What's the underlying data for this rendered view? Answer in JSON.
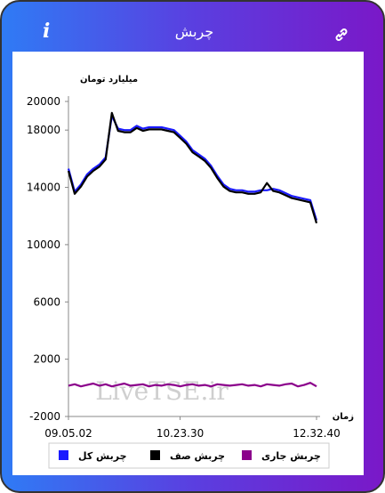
{
  "header": {
    "title": "چربش",
    "info": "i"
  },
  "chart_data": {
    "type": "line",
    "y_label": "میلیارد تومان",
    "x_label": "زمان",
    "watermark": "LiveTSE.ir",
    "categories": [
      "09.05.02",
      null,
      null,
      null,
      null,
      null,
      null,
      null,
      null,
      null,
      null,
      null,
      null,
      null,
      null,
      null,
      null,
      null,
      "10.23.30",
      null,
      null,
      null,
      null,
      null,
      null,
      null,
      null,
      null,
      null,
      null,
      null,
      null,
      null,
      null,
      null,
      null,
      null,
      null,
      null,
      null,
      "12.32.40"
    ],
    "ylim": [
      -2000,
      20000
    ],
    "yticks": [
      -2000,
      2000,
      6000,
      10000,
      14000,
      18000,
      20000
    ],
    "legend": "bottom",
    "series": [
      {
        "name": "چربش کل",
        "color": "#1a1aff",
        "values": [
          15300,
          13700,
          14200,
          14900,
          15300,
          15600,
          16100,
          19000,
          18100,
          18000,
          18000,
          18300,
          18100,
          18200,
          18200,
          18200,
          18100,
          18000,
          17600,
          17200,
          16600,
          16300,
          16000,
          15500,
          14800,
          14200,
          13900,
          13800,
          13800,
          13700,
          13700,
          13800,
          13800,
          13900,
          13800,
          13600,
          13400,
          13300,
          13200,
          13100,
          11700
        ]
      },
      {
        "name": "چربش صف",
        "color": "#000000",
        "values": [
          15150,
          13550,
          14050,
          14750,
          15150,
          15450,
          15950,
          19200,
          17950,
          17850,
          17850,
          18150,
          17950,
          18050,
          18050,
          18050,
          17950,
          17850,
          17450,
          17050,
          16450,
          16150,
          15850,
          15350,
          14650,
          14050,
          13750,
          13650,
          13650,
          13550,
          13550,
          13650,
          14300,
          13750,
          13650,
          13450,
          13250,
          13150,
          13050,
          12950,
          11500
        ]
      },
      {
        "name": "چربش جاری",
        "color": "#8b008b",
        "values": [
          150,
          250,
          100,
          200,
          300,
          150,
          250,
          100,
          200,
          300,
          150,
          200,
          250,
          100,
          200,
          150,
          250,
          200,
          100,
          200,
          250,
          150,
          200,
          100,
          250,
          200,
          150,
          200,
          250,
          150,
          200,
          100,
          250,
          200,
          150,
          250,
          300,
          100,
          200,
          350,
          100
        ]
      }
    ]
  }
}
